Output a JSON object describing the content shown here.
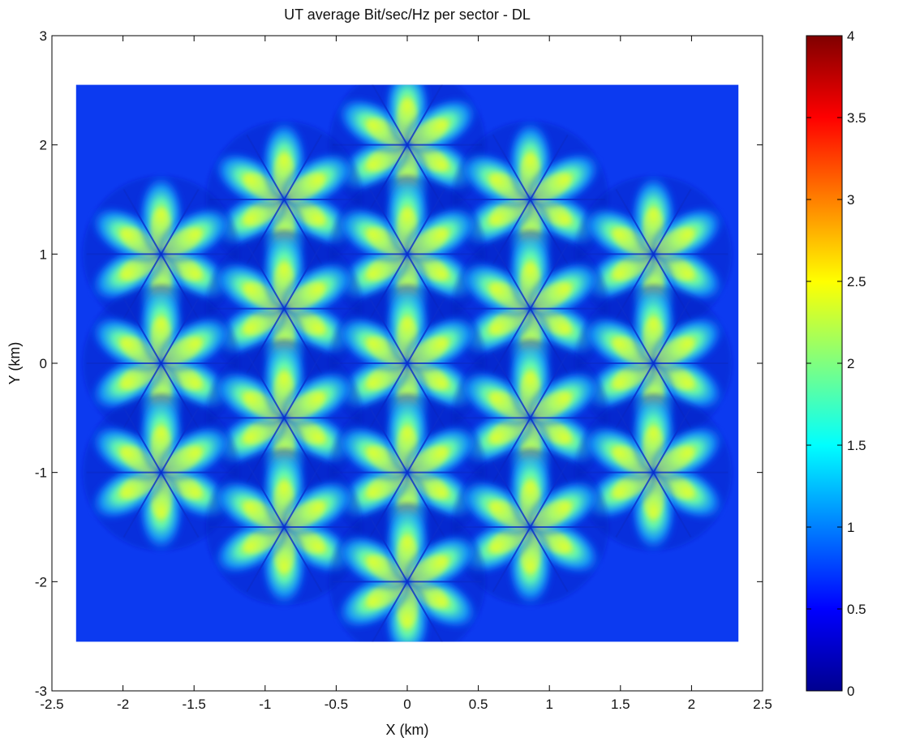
{
  "chart_data": {
    "type": "heatmap",
    "title": "UT average Bit/sec/Hz per sector - DL",
    "xlabel": "X (km)",
    "ylabel": "Y (km)",
    "xlim": [
      -2.5,
      2.5
    ],
    "ylim": [
      -3,
      3
    ],
    "xticks": [
      "-2.5",
      "-2",
      "-1.5",
      "-1",
      "-0.5",
      "0",
      "0.5",
      "1",
      "1.5",
      "2",
      "2.5"
    ],
    "yticks": [
      "-3",
      "-2",
      "-1",
      "0",
      "1",
      "2",
      "3"
    ],
    "data_extent": {
      "x": [
        -2.33,
        2.33
      ],
      "y": [
        -2.55,
        2.55
      ]
    },
    "colorbar": {
      "range": [
        0,
        4
      ],
      "ticks": [
        "0",
        "0.5",
        "1",
        "1.5",
        "2",
        "2.5",
        "3",
        "3.5",
        "4"
      ],
      "colormap": "jet"
    },
    "value_range_observed": [
      0.1,
      2.6
    ],
    "sites": [
      {
        "x": 0,
        "y": 2
      },
      {
        "x": -0.866,
        "y": 1.5
      },
      {
        "x": 0.866,
        "y": 1.5
      },
      {
        "x": -1.732,
        "y": 1
      },
      {
        "x": 0,
        "y": 1
      },
      {
        "x": 1.732,
        "y": 1
      },
      {
        "x": -0.866,
        "y": 0.5
      },
      {
        "x": 0.866,
        "y": 0.5
      },
      {
        "x": -1.732,
        "y": 0
      },
      {
        "x": 0,
        "y": 0
      },
      {
        "x": 1.732,
        "y": 0
      },
      {
        "x": -0.866,
        "y": -0.5
      },
      {
        "x": 0.866,
        "y": -0.5
      },
      {
        "x": -1.732,
        "y": -1
      },
      {
        "x": 0,
        "y": -1
      },
      {
        "x": 1.732,
        "y": -1
      },
      {
        "x": -0.866,
        "y": -1.5
      },
      {
        "x": 0.866,
        "y": -1.5
      },
      {
        "x": 0,
        "y": -2
      }
    ],
    "sectors_per_site": 6,
    "grid": false,
    "legend": "none"
  }
}
